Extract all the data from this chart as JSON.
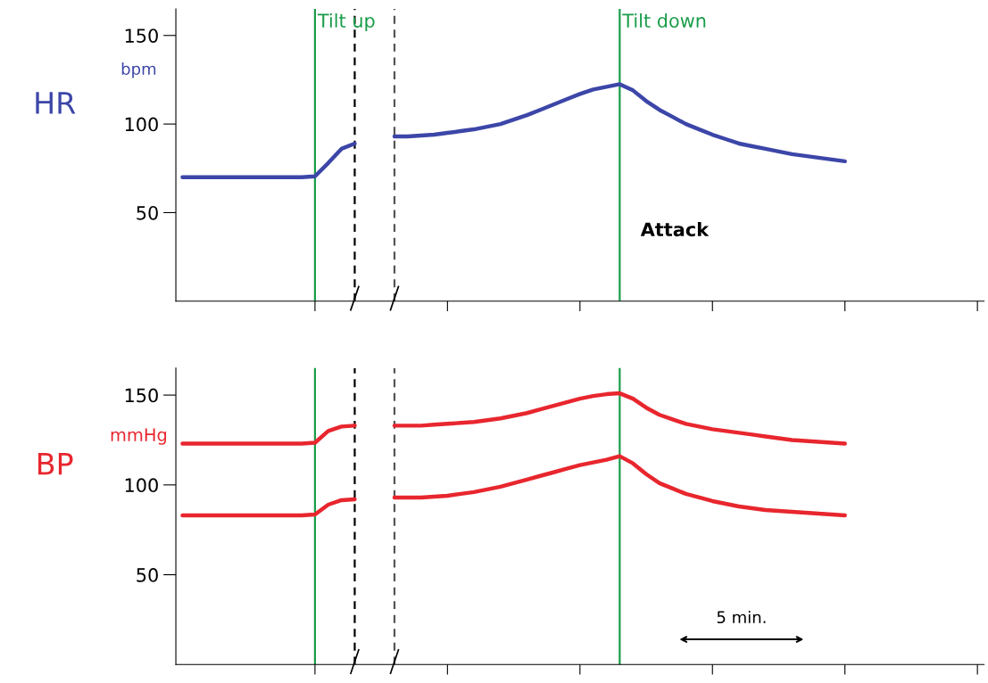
{
  "chart_data": [
    {
      "type": "line",
      "ylabel": "HR",
      "annotations": [
        "Tilt up",
        "Tilt down",
        "bpm",
        "Attack"
      ],
      "categories": [
        null,
        null,
        null,
        null,
        null,
        null,
        null,
        null,
        null,
        null,
        null,
        null,
        null,
        null,
        null,
        null,
        null,
        null,
        null,
        null,
        null,
        null,
        null,
        null,
        null,
        null,
        null,
        null,
        null,
        null,
        null,
        null,
        null,
        null,
        null,
        null,
        null,
        null,
        null,
        null,
        null,
        null,
        null,
        null,
        null,
        null,
        null,
        null,
        null,
        null,
        null,
        null,
        null,
        null,
        null,
        null,
        null,
        null,
        null,
        null,
        null
      ],
      "series": [
        {
          "color": "#3c46a8",
          "values": [
            70,
            70,
            70,
            70,
            70,
            70,
            70,
            70,
            70,
            70,
            70.5,
            78,
            86,
            89,
            null,
            null,
            null,
            null,
            null,
            null,
            null,
            null,
            null,
            null,
            null,
            null,
            null,
            null,
            null,
            null,
            null,
            null,
            null,
            null,
            null,
            null,
            null,
            null,
            null,
            null,
            null,
            null,
            null,
            null,
            null,
            null,
            null,
            null,
            null,
            null,
            null,
            null,
            null,
            null,
            null,
            null,
            null,
            null,
            null,
            null,
            null
          ]
        },
        {
          "color": "#3c46a8",
          "values": [
            null,
            null,
            null,
            null,
            null,
            null,
            null,
            null,
            null,
            null,
            null,
            null,
            null,
            null,
            null,
            null,
            93,
            93,
            93.5,
            94,
            95,
            96,
            97,
            98.5,
            100,
            102.5,
            105,
            108,
            111,
            114,
            117,
            119.5,
            121,
            122.5,
            119,
            113,
            108,
            104,
            100,
            97,
            94,
            91.5,
            89,
            87.5,
            86,
            84.5,
            83,
            82,
            81,
            80,
            79,
            null,
            null,
            null,
            null,
            null,
            null,
            null,
            null,
            null,
            null
          ]
        }
      ],
      "ylim": [
        0,
        165
      ],
      "yticks": [
        50,
        100,
        150
      ],
      "tick_labels": "y"
    },
    {
      "type": "line",
      "ylabel": "BP",
      "annotations": [
        "mmHg",
        "5 min."
      ],
      "categories": [
        null,
        null,
        null,
        null,
        null,
        null,
        null,
        null,
        null,
        null,
        null,
        null,
        null,
        null,
        null,
        null,
        null,
        null,
        null,
        null,
        null,
        null,
        null,
        null,
        null,
        null,
        null,
        null,
        null,
        null,
        null,
        null,
        null,
        null,
        null,
        null,
        null,
        null,
        null,
        null,
        null,
        null,
        null,
        null,
        null,
        null,
        null,
        null,
        null,
        null,
        null,
        null,
        null,
        null,
        null,
        null,
        null,
        null,
        null,
        null,
        null
      ],
      "series": [
        {
          "color": "#e8262e",
          "values": [
            123,
            123,
            123,
            123,
            123,
            123,
            123,
            123,
            123,
            123,
            123.5,
            130,
            132.5,
            133,
            null,
            null,
            null,
            null,
            null,
            null,
            null,
            null,
            null,
            null,
            null,
            null,
            null,
            null,
            null,
            null,
            null,
            null,
            null,
            null,
            null,
            null,
            null,
            null,
            null,
            null,
            null,
            null,
            null,
            null,
            null,
            null,
            null,
            null,
            null,
            null,
            null,
            null,
            null,
            null,
            null,
            null,
            null,
            null,
            null,
            null,
            null
          ]
        },
        {
          "color": "#e8262e",
          "values": [
            null,
            null,
            null,
            null,
            null,
            null,
            null,
            null,
            null,
            null,
            null,
            null,
            null,
            null,
            null,
            null,
            133,
            133,
            133,
            133.5,
            134,
            134.5,
            135,
            136,
            137,
            138.5,
            140,
            142,
            144,
            146,
            148,
            149.5,
            150.5,
            151,
            148,
            143,
            139,
            136.5,
            134,
            132.5,
            131,
            130,
            129,
            128,
            127,
            126,
            125,
            124.5,
            124,
            123.5,
            123,
            null,
            null,
            null,
            null,
            null,
            null,
            null,
            null,
            null,
            null
          ]
        },
        {
          "color": "#e8262e",
          "values": [
            83,
            83,
            83,
            83,
            83,
            83,
            83,
            83,
            83,
            83,
            83.5,
            89,
            91.5,
            92,
            null,
            null,
            null,
            null,
            null,
            null,
            null,
            null,
            null,
            null,
            null,
            null,
            null,
            null,
            null,
            null,
            null,
            null,
            null,
            null,
            null,
            null,
            null,
            null,
            null,
            null,
            null,
            null,
            null,
            null,
            null,
            null,
            null,
            null,
            null,
            null,
            null,
            null,
            null,
            null,
            null,
            null,
            null,
            null,
            null,
            null,
            null
          ]
        },
        {
          "color": "#e8262e",
          "values": [
            null,
            null,
            null,
            null,
            null,
            null,
            null,
            null,
            null,
            null,
            null,
            null,
            null,
            null,
            null,
            null,
            93,
            93,
            93,
            93.5,
            94,
            95,
            96,
            97.5,
            99,
            101,
            103,
            105,
            107,
            109,
            111,
            112.5,
            114,
            116,
            112,
            106,
            101,
            98,
            95,
            93,
            91,
            89.5,
            88,
            87,
            86,
            85.5,
            85,
            84.5,
            84,
            83.5,
            83,
            null,
            null,
            null,
            null,
            null,
            null,
            null,
            null,
            null,
            null
          ]
        }
      ],
      "ylim": [
        0,
        165
      ],
      "yticks": [
        50,
        100,
        150
      ],
      "tick_labels": "y"
    }
  ]
}
